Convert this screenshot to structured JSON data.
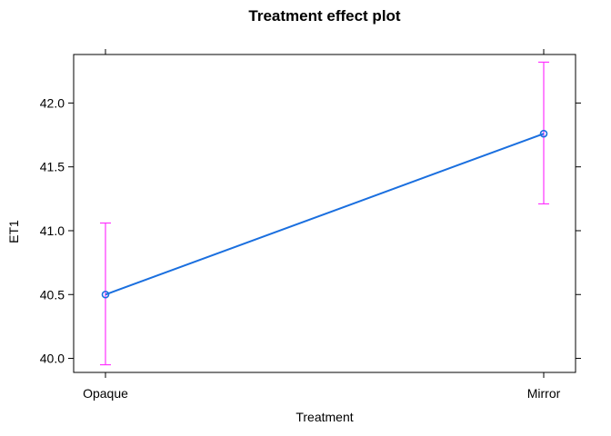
{
  "chart_data": {
    "type": "line",
    "title": "Treatment effect plot",
    "xlabel": "Treatment",
    "ylabel": "ET1",
    "categories": [
      "Opaque",
      "Mirror"
    ],
    "values": [
      40.5,
      41.76
    ],
    "lower": [
      39.95,
      41.21
    ],
    "upper": [
      41.06,
      42.32
    ],
    "ylim": [
      39.89,
      42.38
    ],
    "yticks": [
      "40.0",
      "40.5",
      "41.0",
      "41.5",
      "42.0"
    ],
    "grid": false,
    "colors": {
      "line": "#1a6fdf",
      "errorbar": "#ff33ff",
      "frame": "#000000"
    }
  }
}
